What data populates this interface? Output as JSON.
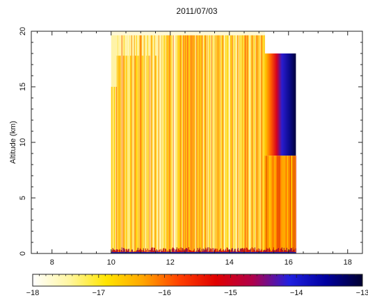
{
  "chart_data": {
    "type": "heatmap",
    "title": "2011/07/03",
    "ylabel": "Altitude (km)",
    "xlabel": "",
    "xlim": [
      7.3,
      18.5
    ],
    "ylim": [
      0,
      20
    ],
    "xticks": [
      8,
      10,
      12,
      14,
      16,
      18
    ],
    "yticks": [
      0,
      5,
      10,
      15,
      20
    ],
    "data_extent": {
      "x_start": 10.0,
      "x_end": 16.25,
      "y_top_main": 19.7,
      "x_transition": 15.2,
      "y_top_late": 18.0,
      "y_dark_core_bottom": 8.8
    },
    "colorbar": {
      "range": [
        -18,
        -13
      ],
      "ticks": [
        -18,
        -17,
        -16,
        -15,
        -14,
        -13
      ],
      "stops": [
        "#ffffff",
        "#fff6a0",
        "#ffe500",
        "#ffa600",
        "#ff4000",
        "#e00000",
        "#b0004a",
        "#2020e0",
        "#0000a0",
        "#000030"
      ]
    }
  }
}
